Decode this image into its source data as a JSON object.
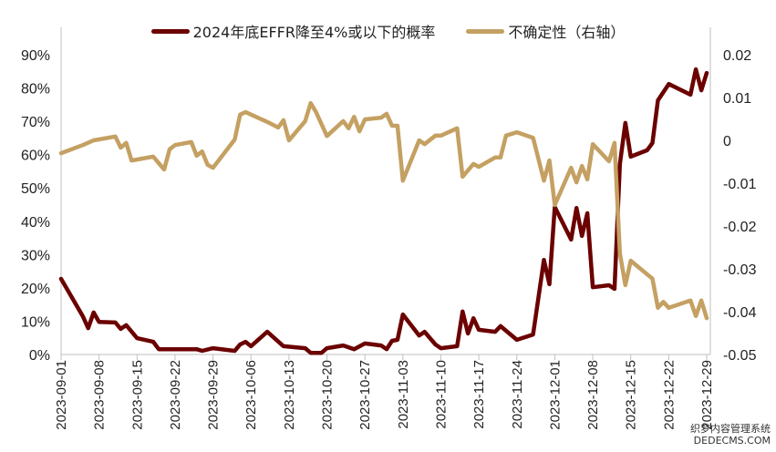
{
  "chart_data": {
    "type": "line",
    "title": "",
    "grid": false,
    "legend_position": "top",
    "x_ticks": [
      "2023-09-01",
      "2023-09-08",
      "2023-09-15",
      "2023-09-22",
      "2023-09-29",
      "2023-10-06",
      "2023-10-13",
      "2023-10-20",
      "2023-10-27",
      "2023-11-03",
      "2023-11-10",
      "2023-11-17",
      "2023-11-24",
      "2023-12-01",
      "2023-12-08",
      "2023-12-15",
      "2023-12-22",
      "2023-12-29"
    ],
    "xlim": [
      "2023-09-01",
      "2023-12-29"
    ],
    "y_left": {
      "ylim": [
        0,
        90
      ],
      "ticks": [
        "0%",
        "10%",
        "20%",
        "30%",
        "40%",
        "50%",
        "60%",
        "70%",
        "80%",
        "90%"
      ]
    },
    "y_right": {
      "ylim": [
        -0.05,
        0.02
      ],
      "ticks": [
        "-0.05",
        "-0.04",
        "-0.03",
        "-0.02",
        "-0.01",
        "0",
        "0.01",
        "0.02"
      ]
    },
    "series": [
      {
        "name": "2024年底EFFR降至4%或以下的概率",
        "axis": "left",
        "color": "#6B0000",
        "points": [
          [
            "2023-09-01",
            22.7
          ],
          [
            "2023-09-05",
            11.5
          ],
          [
            "2023-09-06",
            7.9
          ],
          [
            "2023-09-07",
            12.6
          ],
          [
            "2023-09-08",
            9.8
          ],
          [
            "2023-09-11",
            9.6
          ],
          [
            "2023-09-12",
            7.7
          ],
          [
            "2023-09-13",
            8.8
          ],
          [
            "2023-09-15",
            4.9
          ],
          [
            "2023-09-18",
            3.8
          ],
          [
            "2023-09-19",
            1.6
          ],
          [
            "2023-09-26",
            1.6
          ],
          [
            "2023-09-27",
            1.1
          ],
          [
            "2023-09-29",
            1.9
          ],
          [
            "2023-10-03",
            1.1
          ],
          [
            "2023-10-04",
            3.0
          ],
          [
            "2023-10-05",
            3.8
          ],
          [
            "2023-10-06",
            2.5
          ],
          [
            "2023-10-09",
            6.8
          ],
          [
            "2023-10-12",
            2.5
          ],
          [
            "2023-10-16",
            1.9
          ],
          [
            "2023-10-17",
            0.5
          ],
          [
            "2023-10-19",
            0.5
          ],
          [
            "2023-10-20",
            1.9
          ],
          [
            "2023-10-23",
            2.7
          ],
          [
            "2023-10-25",
            1.6
          ],
          [
            "2023-10-27",
            3.3
          ],
          [
            "2023-10-30",
            2.7
          ],
          [
            "2023-10-31",
            1.6
          ],
          [
            "2023-11-01",
            4.1
          ],
          [
            "2023-11-02",
            4.4
          ],
          [
            "2023-11-03",
            12.0
          ],
          [
            "2023-11-06",
            5.7
          ],
          [
            "2023-11-07",
            6.8
          ],
          [
            "2023-11-09",
            3.0
          ],
          [
            "2023-11-10",
            1.9
          ],
          [
            "2023-11-13",
            2.5
          ],
          [
            "2023-11-14",
            12.9
          ],
          [
            "2023-11-15",
            6.3
          ],
          [
            "2023-11-16",
            10.9
          ],
          [
            "2023-11-17",
            7.4
          ],
          [
            "2023-11-20",
            6.8
          ],
          [
            "2023-11-21",
            8.5
          ],
          [
            "2023-11-24",
            4.4
          ],
          [
            "2023-11-27",
            6.0
          ],
          [
            "2023-11-29",
            28.4
          ],
          [
            "2023-11-30",
            21.1
          ],
          [
            "2023-12-01",
            44.3
          ],
          [
            "2023-12-04",
            34.5
          ],
          [
            "2023-12-05",
            44.0
          ],
          [
            "2023-12-06",
            35.6
          ],
          [
            "2023-12-07",
            42.4
          ],
          [
            "2023-12-08",
            20.2
          ],
          [
            "2023-12-11",
            20.8
          ],
          [
            "2023-12-12",
            19.7
          ],
          [
            "2023-12-13",
            57.2
          ],
          [
            "2023-12-14",
            69.5
          ],
          [
            "2023-12-15",
            59.4
          ],
          [
            "2023-12-18",
            61.3
          ],
          [
            "2023-12-19",
            63.5
          ],
          [
            "2023-12-20",
            76.3
          ],
          [
            "2023-12-22",
            81.2
          ],
          [
            "2023-12-26",
            78.0
          ],
          [
            "2023-12-27",
            85.6
          ],
          [
            "2023-12-28",
            79.3
          ],
          [
            "2023-12-29",
            84.5
          ]
        ]
      },
      {
        "name": "不确定性（右轴）",
        "axis": "right",
        "color": "#C4A062",
        "points": [
          [
            "2023-09-01",
            -0.003
          ],
          [
            "2023-09-05",
            -0.0011
          ],
          [
            "2023-09-07",
            0.0
          ],
          [
            "2023-09-11",
            0.0009
          ],
          [
            "2023-09-12",
            -0.0017
          ],
          [
            "2023-09-13",
            -0.0006
          ],
          [
            "2023-09-14",
            -0.0047
          ],
          [
            "2023-09-18",
            -0.0038
          ],
          [
            "2023-09-20",
            -0.0068
          ],
          [
            "2023-09-21",
            -0.0021
          ],
          [
            "2023-09-22",
            -0.0011
          ],
          [
            "2023-09-25",
            -0.0004
          ],
          [
            "2023-09-26",
            -0.0036
          ],
          [
            "2023-09-27",
            -0.0026
          ],
          [
            "2023-09-28",
            -0.0057
          ],
          [
            "2023-09-29",
            -0.0064
          ],
          [
            "2023-10-03",
            0.0002
          ],
          [
            "2023-10-04",
            0.006
          ],
          [
            "2023-10-05",
            0.0066
          ],
          [
            "2023-10-09",
            0.0043
          ],
          [
            "2023-10-11",
            0.003
          ],
          [
            "2023-10-12",
            0.0047
          ],
          [
            "2023-10-13",
            0.0
          ],
          [
            "2023-10-16",
            0.0045
          ],
          [
            "2023-10-17",
            0.0087
          ],
          [
            "2023-10-18",
            0.0066
          ],
          [
            "2023-10-20",
            0.001
          ],
          [
            "2023-10-23",
            0.0045
          ],
          [
            "2023-10-24",
            0.0028
          ],
          [
            "2023-10-25",
            0.0055
          ],
          [
            "2023-10-26",
            0.0021
          ],
          [
            "2023-10-27",
            0.0049
          ],
          [
            "2023-10-30",
            0.0053
          ],
          [
            "2023-10-31",
            0.0062
          ],
          [
            "2023-11-01",
            0.0034
          ],
          [
            "2023-11-02",
            0.0034
          ],
          [
            "2023-11-03",
            -0.0094
          ],
          [
            "2023-11-06",
            0.0
          ],
          [
            "2023-11-07",
            -0.0009
          ],
          [
            "2023-11-09",
            0.0011
          ],
          [
            "2023-11-10",
            0.0011
          ],
          [
            "2023-11-13",
            0.0028
          ],
          [
            "2023-11-14",
            -0.0085
          ],
          [
            "2023-11-16",
            -0.0055
          ],
          [
            "2023-11-17",
            -0.0062
          ],
          [
            "2023-11-20",
            -0.004
          ],
          [
            "2023-11-21",
            -0.004
          ],
          [
            "2023-11-22",
            0.0011
          ],
          [
            "2023-11-24",
            0.0019
          ],
          [
            "2023-11-27",
            0.0006
          ],
          [
            "2023-11-29",
            -0.0094
          ],
          [
            "2023-11-30",
            -0.0047
          ],
          [
            "2023-12-01",
            -0.0151
          ],
          [
            "2023-12-04",
            -0.0064
          ],
          [
            "2023-12-05",
            -0.0098
          ],
          [
            "2023-12-06",
            -0.006
          ],
          [
            "2023-12-07",
            -0.0091
          ],
          [
            "2023-12-08",
            -0.0009
          ],
          [
            "2023-12-11",
            -0.0049
          ],
          [
            "2023-12-12",
            -0.0006
          ],
          [
            "2023-12-13",
            -0.0264
          ],
          [
            "2023-12-14",
            -0.0338
          ],
          [
            "2023-12-15",
            -0.0281
          ],
          [
            "2023-12-19",
            -0.0323
          ],
          [
            "2023-12-20",
            -0.0391
          ],
          [
            "2023-12-21",
            -0.0377
          ],
          [
            "2023-12-22",
            -0.0391
          ],
          [
            "2023-12-26",
            -0.0374
          ],
          [
            "2023-12-27",
            -0.041
          ],
          [
            "2023-12-28",
            -0.0374
          ],
          [
            "2023-12-29",
            -0.0415
          ]
        ]
      }
    ]
  },
  "watermark": {
    "line1": "织梦内容管理系统",
    "line2": "DEDECMS.COM"
  }
}
